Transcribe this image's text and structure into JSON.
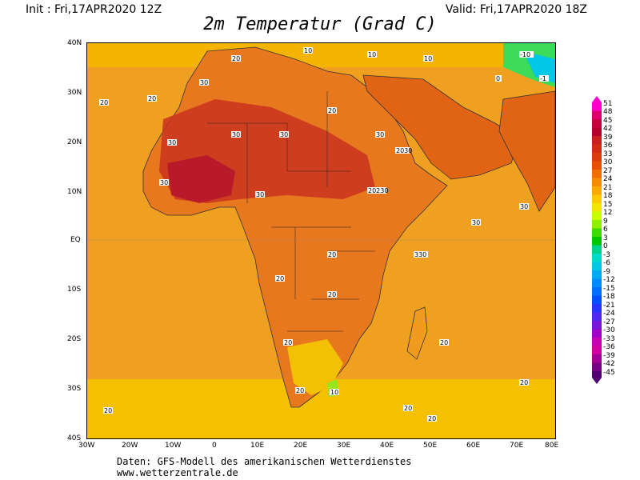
{
  "header": {
    "init": "Init : Fri,17APR2020 12Z",
    "valid": "Valid: Fri,17APR2020 18Z",
    "title": "2m Temperatur (Grad C)"
  },
  "axes": {
    "lat_labels": [
      "40N",
      "30N",
      "20N",
      "10N",
      "EQ",
      "10S",
      "20S",
      "30S",
      "40S"
    ],
    "lon_labels": [
      "30W",
      "20W",
      "10W",
      "0",
      "10E",
      "20E",
      "30E",
      "40E",
      "50E",
      "60E",
      "70E",
      "80E"
    ]
  },
  "colorbar": {
    "labels": [
      "51",
      "48",
      "45",
      "42",
      "39",
      "36",
      "33",
      "30",
      "27",
      "24",
      "21",
      "18",
      "15",
      "12",
      "9",
      "6",
      "3",
      "0",
      "-3",
      "-6",
      "-9",
      "-12",
      "-15",
      "-18",
      "-21",
      "-24",
      "-27",
      "-30",
      "-33",
      "-36",
      "-39",
      "-42",
      "-45"
    ],
    "colors": [
      "#ff00c8",
      "#e00070",
      "#c8003c",
      "#b4002d",
      "#c81e1e",
      "#d22d14",
      "#dc3c0a",
      "#e65000",
      "#f06e00",
      "#f58c00",
      "#faaa00",
      "#ffc800",
      "#f0e600",
      "#c8ff00",
      "#8cf000",
      "#3cdc00",
      "#00c800",
      "#00d28c",
      "#00dcc8",
      "#00c8e6",
      "#00aaf0",
      "#008cff",
      "#006eff",
      "#0050ff",
      "#2832ff",
      "#5028f0",
      "#7814dc",
      "#a000c8",
      "#c800b4",
      "#d200a0",
      "#a00096",
      "#780082",
      "#500070"
    ]
  },
  "map": {
    "labels": [
      "20",
      "30",
      "10",
      "-10",
      "-1",
      "0",
      "330",
      "20230",
      "2030"
    ]
  },
  "credits": {
    "line1": "Daten: GFS-Modell des amerikanischen Wetterdienstes",
    "line2": "www.wetterzentrale.de"
  }
}
